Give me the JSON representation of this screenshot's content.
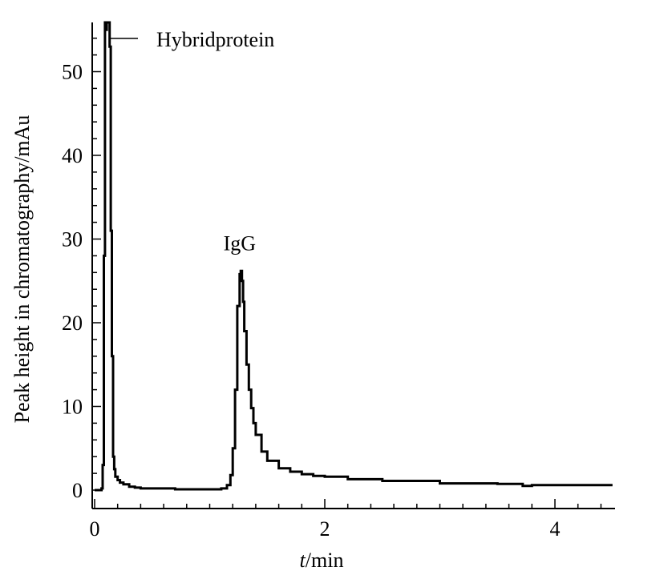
{
  "chart_data": {
    "type": "line",
    "title": "",
    "xlabel_italic": "t",
    "xlabel_rest": "/min",
    "ylabel": "Peak height in chromatography/mAu",
    "xlim": [
      0,
      4.5
    ],
    "ylim": [
      -1.5,
      55.5
    ],
    "x_ticks": [
      0,
      2,
      4
    ],
    "x_tick_labels": [
      "0",
      "2",
      "4"
    ],
    "x_minor_step": 0.2,
    "y_ticks": [
      0,
      10,
      20,
      30,
      40,
      50
    ],
    "y_tick_labels": [
      "0",
      "10",
      "20",
      "30",
      "40",
      "50"
    ],
    "y_minor_step": 2,
    "grid": false,
    "series": [
      {
        "x": [
          0,
          0.05,
          0.06,
          0.07,
          0.08,
          0.09,
          0.095,
          0.1,
          0.105,
          0.11,
          0.12,
          0.13,
          0.14,
          0.15,
          0.16,
          0.17,
          0.18,
          0.2,
          0.22,
          0.25,
          0.3,
          0.35,
          0.4,
          0.5,
          0.6,
          0.7,
          0.75,
          0.9,
          1.0,
          1.1,
          1.15,
          1.18,
          1.2,
          1.22,
          1.24,
          1.26,
          1.27,
          1.28,
          1.29,
          1.3,
          1.32,
          1.34,
          1.36,
          1.38,
          1.4,
          1.45,
          1.5,
          1.6,
          1.7,
          1.8,
          1.9,
          2.0,
          2.2,
          2.5,
          3.0,
          3.5,
          3.72,
          3.8,
          4.0,
          4.5
        ],
        "y": [
          0,
          0,
          0.2,
          3,
          28,
          60,
          60,
          55,
          60,
          60,
          60,
          53,
          31,
          16,
          4,
          2.5,
          1.6,
          1.2,
          0.9,
          0.7,
          0.4,
          0.3,
          0.2,
          0.2,
          0.2,
          0.1,
          0.1,
          0.1,
          0.1,
          0.2,
          0.6,
          1.8,
          5,
          12,
          22,
          25.8,
          26.2,
          25,
          22.5,
          19,
          15,
          12,
          9.8,
          8,
          6.6,
          4.6,
          3.5,
          2.6,
          2.2,
          1.9,
          1.7,
          1.6,
          1.3,
          1.1,
          0.8,
          0.75,
          0.5,
          0.6,
          0.6,
          0.6
        ]
      }
    ],
    "annotations": [
      {
        "text": "Hybridprotein",
        "x": 0.16,
        "y": 54
      },
      {
        "text": "IgG",
        "x": 1.26,
        "y": 29.5
      }
    ]
  }
}
